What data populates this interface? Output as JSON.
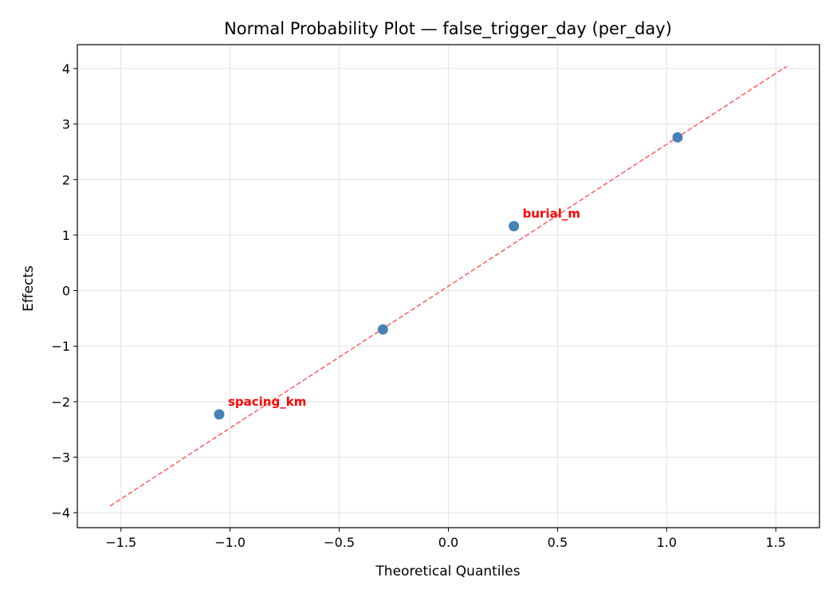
{
  "chart_data": {
    "type": "scatter",
    "title": "Normal Probability Plot — false_trigger_day (per_day)",
    "xlabel": "Theoretical Quantiles",
    "ylabel": "Effects",
    "xlim": [
      -1.7,
      1.7
    ],
    "ylim": [
      -4.27,
      4.43
    ],
    "xticks": [
      -1.5,
      -1.0,
      -0.5,
      0.0,
      0.5,
      1.0,
      1.5
    ],
    "xtick_labels": [
      "−1.5",
      "−1.0",
      "−0.5",
      "0.0",
      "0.5",
      "1.0",
      "1.5"
    ],
    "yticks": [
      -4,
      -3,
      -2,
      -1,
      0,
      1,
      2,
      3,
      4
    ],
    "ytick_labels": [
      "−4",
      "−3",
      "−2",
      "−1",
      "0",
      "1",
      "2",
      "3",
      "4"
    ],
    "grid": true,
    "points": [
      {
        "x": -1.05,
        "y": -2.23,
        "label": "spacing_km"
      },
      {
        "x": -0.3,
        "y": -0.7,
        "label": ""
      },
      {
        "x": 0.3,
        "y": 1.16,
        "label": "burial_m"
      },
      {
        "x": 1.05,
        "y": 2.76,
        "label": ""
      }
    ],
    "reference_line": {
      "x": [
        -1.55,
        1.55
      ],
      "y": [
        -3.88,
        4.04
      ],
      "style": "dashed"
    },
    "colors": {
      "points": "#4682b4",
      "line": "#ff6666",
      "labels": "#ff0000",
      "grid": "#e5e5e5"
    }
  }
}
